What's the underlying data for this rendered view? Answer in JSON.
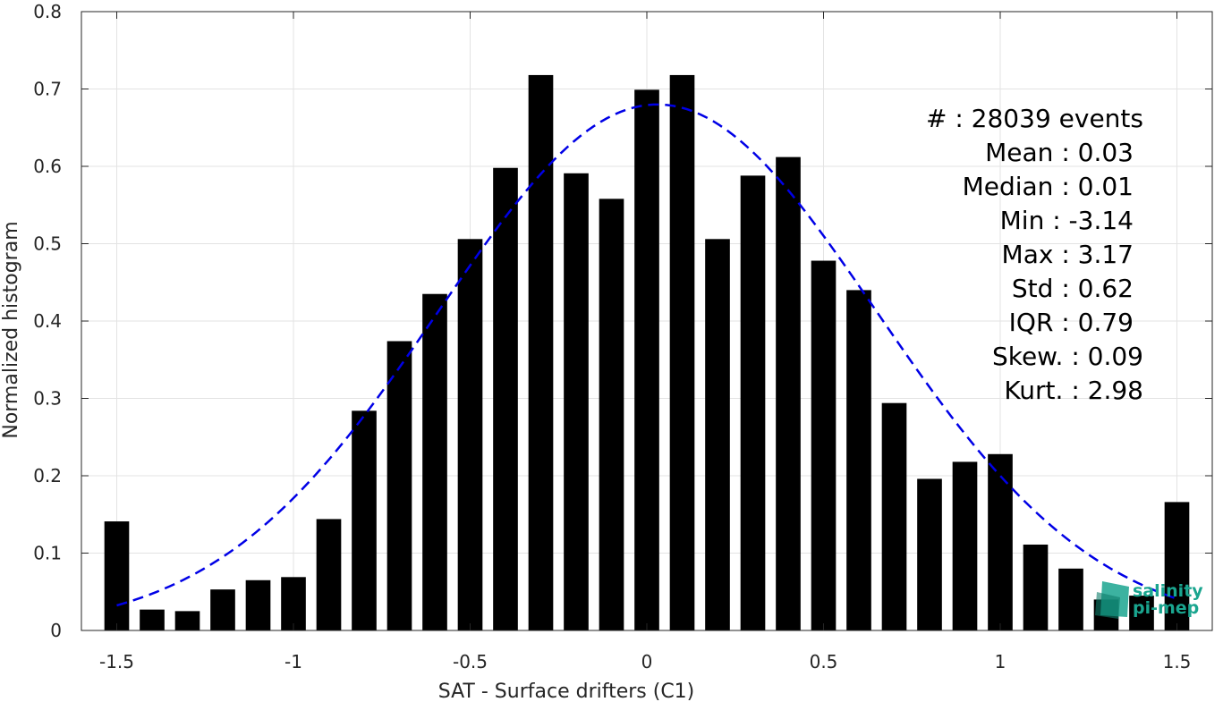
{
  "chart_data": {
    "type": "bar",
    "xlabel": "SAT - Surface drifters (C1)",
    "ylabel": "Normalized histogram",
    "xlim": [
      -1.6,
      1.6
    ],
    "ylim": [
      0,
      0.8
    ],
    "xticks": [
      -1.5,
      -1,
      -0.5,
      0,
      0.5,
      1,
      1.5
    ],
    "xtick_labels": [
      "-1.5",
      "-1",
      "-0.5",
      "0",
      "0.5",
      "1",
      "1.5"
    ],
    "yticks": [
      0,
      0.1,
      0.2,
      0.3,
      0.4,
      0.5,
      0.6,
      0.7,
      0.8
    ],
    "ytick_labels": [
      "0",
      "0.1",
      "0.2",
      "0.3",
      "0.4",
      "0.5",
      "0.6",
      "0.7",
      "0.8"
    ],
    "grid": true,
    "bar_color": "#000000",
    "bar_width": 0.07,
    "bins": [
      -1.5,
      -1.4,
      -1.3,
      -1.2,
      -1.1,
      -1.0,
      -0.9,
      -0.8,
      -0.7,
      -0.6,
      -0.5,
      -0.4,
      -0.3,
      -0.2,
      -0.1,
      0.0,
      0.1,
      0.2,
      0.3,
      0.4,
      0.5,
      0.6,
      0.7,
      0.8,
      0.9,
      1.0,
      1.1,
      1.2,
      1.3,
      1.4,
      1.5
    ],
    "values": [
      0.141,
      0.027,
      0.025,
      0.053,
      0.065,
      0.069,
      0.144,
      0.284,
      0.374,
      0.435,
      0.506,
      0.598,
      0.718,
      0.591,
      0.558,
      0.699,
      0.718,
      0.506,
      0.588,
      0.612,
      0.478,
      0.44,
      0.294,
      0.196,
      0.218,
      0.228,
      0.111,
      0.08,
      0.04,
      0.045,
      0.166
    ],
    "fit_curve": {
      "style": "dashed",
      "color": "#0000e6",
      "mean": 0.03,
      "std": 0.62,
      "peak": 0.68,
      "x_range": [
        -1.5,
        1.5
      ]
    },
    "stats": [
      {
        "label": "#  : 28039 events"
      },
      {
        "label": "Mean : 0.03"
      },
      {
        "label": "Median : 0.01"
      },
      {
        "label": "Min : -3.14"
      },
      {
        "label": "Max : 3.17"
      },
      {
        "label": "Std : 0.62"
      },
      {
        "label": "IQR : 0.79"
      },
      {
        "label": "Skew. : 0.09"
      },
      {
        "label": "Kurt. : 2.98"
      }
    ]
  },
  "logo": {
    "line1": "salinity",
    "line2": "pi-mep",
    "color": "#1aa58f"
  }
}
